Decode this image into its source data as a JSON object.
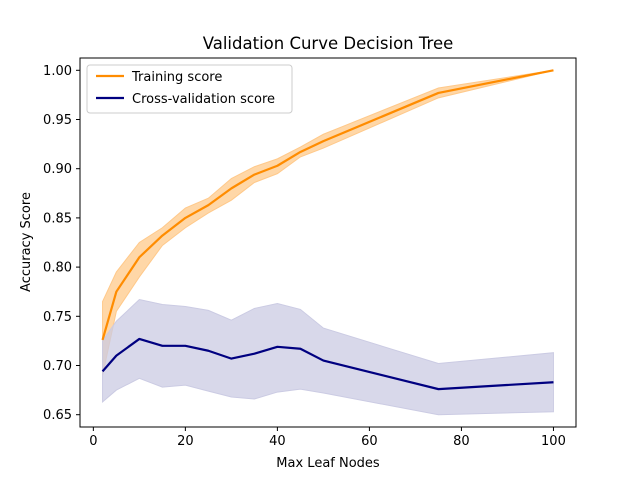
{
  "chart_data": {
    "type": "line",
    "title": "Validation Curve Decision Tree",
    "xlabel": "Max Leaf Nodes",
    "ylabel": "Accuracy Score",
    "xlim": [
      -2.9,
      104.9
    ],
    "ylim": [
      0.6375,
      1.0125
    ],
    "xticks": [
      0,
      20,
      40,
      60,
      80,
      100
    ],
    "yticks": [
      0.65,
      0.7,
      0.75,
      0.8,
      0.85,
      0.9,
      0.95,
      1.0
    ],
    "ytick_labels": [
      "0.65",
      "0.70",
      "0.75",
      "0.80",
      "0.85",
      "0.90",
      "0.95",
      "1.00"
    ],
    "xtick_labels": [
      "0",
      "20",
      "40",
      "60",
      "80",
      "100"
    ],
    "grid": false,
    "legend": "top-left",
    "x": [
      2,
      5,
      10,
      15,
      20,
      25,
      30,
      35,
      40,
      45,
      50,
      75,
      100
    ],
    "series": [
      {
        "name": "Training score",
        "color": "#ff8c00",
        "band_color": "#ffc98a",
        "values": [
          0.726,
          0.775,
          0.81,
          0.832,
          0.85,
          0.863,
          0.88,
          0.894,
          0.903,
          0.917,
          0.928,
          0.977,
          1.0
        ],
        "upper": [
          0.765,
          0.795,
          0.825,
          0.84,
          0.86,
          0.87,
          0.89,
          0.902,
          0.91,
          0.922,
          0.935,
          0.982,
          1.0
        ],
        "lower": [
          0.69,
          0.755,
          0.79,
          0.822,
          0.84,
          0.855,
          0.868,
          0.886,
          0.895,
          0.912,
          0.921,
          0.972,
          1.0
        ]
      },
      {
        "name": "Cross-validation score",
        "color": "#000080",
        "band_color": "#cbcbe3",
        "values": [
          0.694,
          0.71,
          0.727,
          0.72,
          0.72,
          0.715,
          0.707,
          0.712,
          0.719,
          0.717,
          0.705,
          0.676,
          0.683
        ],
        "upper": [
          0.725,
          0.745,
          0.767,
          0.762,
          0.76,
          0.756,
          0.746,
          0.758,
          0.763,
          0.757,
          0.738,
          0.702,
          0.713
        ],
        "lower": [
          0.663,
          0.675,
          0.687,
          0.678,
          0.68,
          0.674,
          0.668,
          0.666,
          0.673,
          0.676,
          0.672,
          0.65,
          0.653
        ]
      }
    ]
  }
}
